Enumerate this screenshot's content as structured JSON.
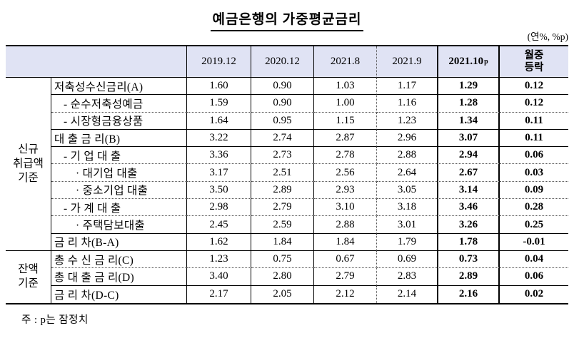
{
  "title": "예금은행의 가중평균금리",
  "unit_label": "(연%, %p)",
  "footnote": "주 : p는 잠정치",
  "colors": {
    "header_bg": "#e0e3f4",
    "border": "#000000"
  },
  "table": {
    "corner_label": "",
    "col_headers": [
      "2019.12",
      "2020.12",
      "2021.8",
      "2021.9"
    ],
    "highlight_header": {
      "text": "2021.10",
      "sup": "p"
    },
    "change_header": "월중\n등락",
    "groups": [
      {
        "label": "신규\n취급액\n기준"
      },
      {
        "label": "잔액\n기준"
      }
    ],
    "rows": [
      {
        "label": "저축성수신금리(A)",
        "values": [
          "1.60",
          "0.90",
          "1.03",
          "1.17",
          "1.29",
          "0.12"
        ]
      },
      {
        "label": "- 순수저축성예금",
        "values": [
          "1.59",
          "0.90",
          "1.00",
          "1.16",
          "1.28",
          "0.12"
        ]
      },
      {
        "label": "- 시장형금융상품",
        "values": [
          "1.64",
          "0.95",
          "1.15",
          "1.23",
          "1.34",
          "0.11"
        ]
      },
      {
        "label": "대 출 금 리(B)",
        "values": [
          "3.22",
          "2.74",
          "2.87",
          "2.96",
          "3.07",
          "0.11"
        ]
      },
      {
        "label": "- 기 업 대 출",
        "values": [
          "3.36",
          "2.73",
          "2.78",
          "2.88",
          "2.94",
          "0.06"
        ]
      },
      {
        "label": "· 대기업 대출",
        "values": [
          "3.17",
          "2.51",
          "2.56",
          "2.64",
          "2.67",
          "0.03"
        ]
      },
      {
        "label": "· 중소기업 대출",
        "values": [
          "3.50",
          "2.89",
          "2.93",
          "3.05",
          "3.14",
          "0.09"
        ]
      },
      {
        "label": "- 가 계 대 출",
        "values": [
          "2.98",
          "2.79",
          "3.10",
          "3.18",
          "3.46",
          "0.28"
        ]
      },
      {
        "label": "· 주택담보대출",
        "values": [
          "2.45",
          "2.59",
          "2.88",
          "3.01",
          "3.26",
          "0.25"
        ]
      },
      {
        "label": "금 리 차(B-A)",
        "values": [
          "1.62",
          "1.84",
          "1.84",
          "1.79",
          "1.78",
          "-0.01"
        ]
      },
      {
        "label": "총 수 신 금 리(C)",
        "values": [
          "1.23",
          "0.75",
          "0.67",
          "0.69",
          "0.73",
          "0.04"
        ]
      },
      {
        "label": "총 대 출 금 리(D)",
        "values": [
          "3.40",
          "2.80",
          "2.79",
          "2.83",
          "2.89",
          "0.06"
        ]
      },
      {
        "label": "금 리 차(D-C)",
        "values": [
          "2.17",
          "2.05",
          "2.12",
          "2.14",
          "2.16",
          "0.02"
        ]
      }
    ]
  }
}
